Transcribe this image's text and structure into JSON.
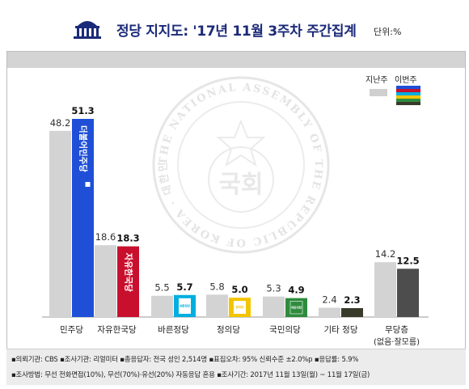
{
  "title": "정당 지지도: '17년 11월 3주차 주간집계",
  "unit": "단위:%",
  "legend": {
    "previous": "지난주",
    "current": "이번주"
  },
  "legend_current_colors": [
    "#1e4fd6",
    "#c8102e",
    "#00aee0",
    "#f2c500",
    "#2e8b3d",
    "#3a3a2a"
  ],
  "chart_data": {
    "type": "bar",
    "title": "정당 지지도: '17년 11월 3주차 주간집계",
    "ylabel": "단위:%",
    "categories": [
      "민주당",
      "자유한국당",
      "바른정당",
      "정의당",
      "국민의당",
      "기타 정당",
      "무당층"
    ],
    "category_sublabels": [
      "",
      "",
      "",
      "",
      "",
      "",
      "(없음·잘모름)"
    ],
    "series": [
      {
        "name": "지난주",
        "values": [
          48.2,
          18.6,
          5.5,
          5.8,
          5.3,
          2.4,
          14.2
        ],
        "color": "#d3d3d3"
      },
      {
        "name": "이번주",
        "values": [
          51.3,
          18.3,
          5.7,
          5.0,
          4.9,
          2.3,
          12.5
        ],
        "colors": [
          "#1e4fd6",
          "#c8102e",
          "#00aee0",
          "#f2c500",
          "#2e8b3d",
          "#3a3a2a",
          "#4d4d4d"
        ]
      }
    ],
    "value_labels": {
      "previous": [
        "48.2",
        "18.6",
        "5.5",
        "5.8",
        "5.3",
        "2.4",
        "14.2"
      ],
      "current": [
        "51.3",
        "18.3",
        "5.7",
        "5.0",
        "4.9",
        "2.3",
        "12.5"
      ]
    },
    "bar_logo_texts": [
      "더불어민주당",
      "자유한국당",
      "바른정당",
      "정의당",
      "국민의당",
      "",
      ""
    ],
    "ylim": [
      0,
      55
    ],
    "grid": false,
    "legend_position": "top-right"
  },
  "watermark_text": "THE NATIONAL ASSEMBLY OF THE REPUBLIC OF KOREA · 대한민국국회 ·",
  "watermark_center": "국회",
  "footnotes": [
    "▪의뢰기관: CBS ▪조사기관: 리얼미터 ▪총응답자: 전국 성인 2,514명 ▪표집오차: 95% 신뢰수준 ±2.0%p ▪응답률: 5.9%",
    "▪조사방법: 무선 전화면접(10%), 무선(70%)·유선(20%) 자동응답 혼용 ▪조사기간: 2017년 11월 13일(월) ~ 11월 17일(금)"
  ]
}
